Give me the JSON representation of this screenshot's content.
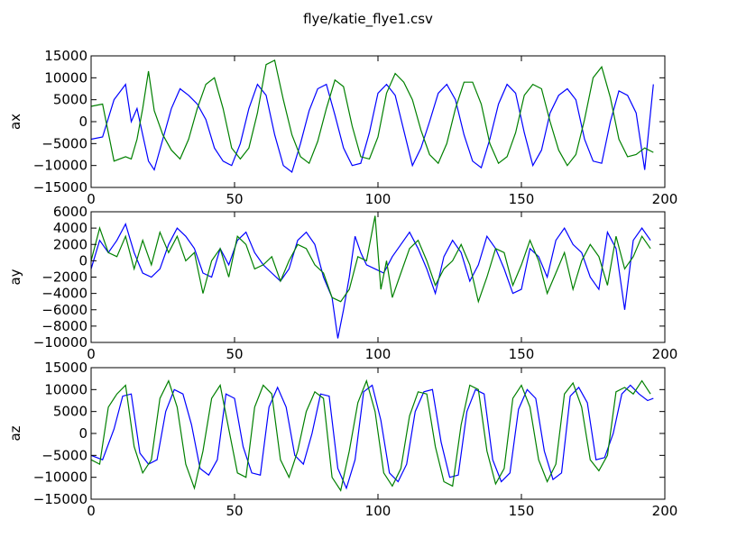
{
  "title": "flye/katie_flye1.csv",
  "colors": {
    "series_1": "#0000ff",
    "series_2": "#008000",
    "frame": "#000000"
  },
  "chart_data": [
    {
      "type": "line",
      "title": "",
      "xlabel": "",
      "ylabel": "ax",
      "xlim": [
        0,
        200
      ],
      "ylim": [
        -15000,
        15000
      ],
      "xticks": [
        0,
        50,
        100,
        150,
        200
      ],
      "yticks": [
        -15000,
        -10000,
        -5000,
        0,
        5000,
        10000,
        15000
      ],
      "grid": false,
      "series": [
        {
          "color": "#0000ff",
          "x": [
            0,
            4,
            8,
            12,
            14,
            16,
            18,
            20,
            22,
            25,
            28,
            31,
            34,
            37,
            40,
            43,
            46,
            49,
            52,
            55,
            58,
            61,
            64,
            67,
            70,
            73,
            76,
            79,
            82,
            85,
            88,
            91,
            94,
            97,
            100,
            103,
            106,
            109,
            112,
            115,
            118,
            121,
            124,
            127,
            130,
            133,
            136,
            139,
            142,
            145,
            148,
            151,
            154,
            157,
            160,
            163,
            166,
            169,
            172,
            175,
            178,
            181,
            184,
            187,
            190,
            193,
            196
          ],
          "y": [
            -4000,
            -3500,
            5000,
            8500,
            0,
            3000,
            -3000,
            -9000,
            -11000,
            -4000,
            3000,
            7500,
            6000,
            4000,
            500,
            -6000,
            -9000,
            -10000,
            -5000,
            3000,
            8500,
            6000,
            -3000,
            -10000,
            -11500,
            -5000,
            2500,
            7500,
            8500,
            1500,
            -6000,
            -10000,
            -9500,
            -2500,
            6500,
            8500,
            6000,
            -2000,
            -10000,
            -6000,
            0,
            6500,
            8500,
            5000,
            -3000,
            -9000,
            -10500,
            -4000,
            4000,
            8500,
            6500,
            -2500,
            -10000,
            -6500,
            2000,
            6000,
            7500,
            5000,
            -4000,
            -9000,
            -9500,
            0,
            7000,
            6000,
            2000,
            -11000,
            8500
          ]
        },
        {
          "color": "#008000",
          "x": [
            0,
            4,
            8,
            12,
            14,
            16,
            18,
            20,
            22,
            25,
            28,
            31,
            34,
            37,
            40,
            43,
            46,
            49,
            52,
            55,
            58,
            61,
            64,
            67,
            70,
            73,
            76,
            79,
            82,
            85,
            88,
            91,
            94,
            97,
            100,
            103,
            106,
            109,
            112,
            115,
            118,
            121,
            124,
            127,
            130,
            133,
            136,
            139,
            142,
            145,
            148,
            151,
            154,
            157,
            160,
            163,
            166,
            169,
            172,
            175,
            178,
            181,
            184,
            187,
            190,
            193,
            196
          ],
          "y": [
            3500,
            4000,
            -9000,
            -8000,
            -8500,
            -4000,
            3000,
            11500,
            2500,
            -3000,
            -6500,
            -8500,
            -4000,
            3000,
            8500,
            10000,
            3000,
            -6000,
            -8500,
            -6000,
            2000,
            13000,
            14000,
            5000,
            -3000,
            -8000,
            -9500,
            -4500,
            3000,
            9500,
            8000,
            -1000,
            -8000,
            -8500,
            -3500,
            6500,
            11000,
            9000,
            5000,
            -2000,
            -7500,
            -9500,
            -5000,
            3000,
            9000,
            9000,
            4000,
            -5000,
            -9500,
            -8000,
            -2500,
            6000,
            8500,
            7500,
            0,
            -6500,
            -10000,
            -7500,
            500,
            10000,
            12500,
            5500,
            -4000,
            -8000,
            -7500,
            -6000,
            -7000
          ]
        }
      ]
    },
    {
      "type": "line",
      "title": "",
      "xlabel": "",
      "ylabel": "ay",
      "xlim": [
        0,
        200
      ],
      "ylim": [
        -10000,
        6000
      ],
      "xticks": [
        0,
        50,
        100,
        150,
        200
      ],
      "yticks": [
        -10000,
        -8000,
        -6000,
        -4000,
        -2000,
        0,
        2000,
        4000,
        6000
      ],
      "grid": false,
      "series": [
        {
          "color": "#0000ff",
          "x": [
            0,
            3,
            6,
            9,
            12,
            15,
            18,
            21,
            24,
            27,
            30,
            33,
            36,
            39,
            42,
            45,
            48,
            51,
            54,
            57,
            60,
            63,
            66,
            69,
            72,
            75,
            78,
            81,
            84,
            86,
            88,
            90,
            92,
            94,
            96,
            99,
            102,
            105,
            108,
            111,
            114,
            117,
            120,
            123,
            126,
            129,
            132,
            135,
            138,
            141,
            144,
            147,
            150,
            153,
            156,
            159,
            162,
            165,
            168,
            171,
            174,
            177,
            180,
            183,
            186,
            189,
            192,
            195
          ],
          "y": [
            -1000,
            2500,
            1000,
            2500,
            4500,
            1000,
            -1500,
            -2000,
            -1000,
            2000,
            4000,
            3000,
            1500,
            -1500,
            -2000,
            1500,
            -500,
            2500,
            3500,
            1000,
            -500,
            -1500,
            -2500,
            -1000,
            2500,
            3500,
            2000,
            -2000,
            -4500,
            -9500,
            -6000,
            -2000,
            3000,
            1000,
            -500,
            -1000,
            -1500,
            500,
            2000,
            3500,
            1500,
            -1000,
            -4000,
            500,
            2500,
            1000,
            -2500,
            -500,
            3000,
            1500,
            -1000,
            -4000,
            -3500,
            1500,
            500,
            -2000,
            2500,
            4000,
            2000,
            1000,
            -2000,
            -3500,
            3500,
            1500,
            -6000,
            2500,
            4000,
            2500
          ]
        },
        {
          "color": "#008000",
          "x": [
            0,
            3,
            6,
            9,
            12,
            15,
            18,
            21,
            24,
            27,
            30,
            33,
            36,
            39,
            42,
            45,
            48,
            51,
            54,
            57,
            60,
            63,
            66,
            69,
            72,
            75,
            78,
            81,
            84,
            87,
            90,
            93,
            96,
            99,
            101,
            103,
            105,
            108,
            111,
            114,
            117,
            120,
            123,
            126,
            129,
            132,
            135,
            138,
            141,
            144,
            147,
            150,
            153,
            156,
            159,
            162,
            165,
            168,
            171,
            174,
            177,
            180,
            183,
            186,
            189,
            192,
            195
          ],
          "y": [
            0,
            4000,
            1000,
            500,
            3000,
            -1000,
            2500,
            -500,
            3500,
            1000,
            3000,
            0,
            1000,
            -4000,
            0,
            1500,
            -2000,
            3000,
            2000,
            -1000,
            -500,
            500,
            -2500,
            0,
            2000,
            1500,
            -500,
            -1500,
            -4500,
            -5000,
            -3500,
            500,
            0,
            5500,
            -3500,
            0,
            -4500,
            -1500,
            1500,
            2500,
            0,
            -3000,
            -1000,
            0,
            2000,
            -500,
            -5000,
            -2000,
            1500,
            1000,
            -3000,
            -500,
            2500,
            0,
            -4000,
            -1500,
            1000,
            -3500,
            0,
            2000,
            500,
            -3000,
            3000,
            -1000,
            500,
            3000,
            1500
          ]
        }
      ]
    },
    {
      "type": "line",
      "title": "",
      "xlabel": "",
      "ylabel": "az",
      "xlim": [
        0,
        200
      ],
      "ylim": [
        -15000,
        15000
      ],
      "xticks": [
        0,
        50,
        100,
        150,
        200
      ],
      "yticks": [
        -15000,
        -10000,
        -5000,
        0,
        5000,
        10000,
        15000
      ],
      "grid": false,
      "series": [
        {
          "color": "#0000ff",
          "x": [
            0,
            4,
            8,
            11,
            14,
            17,
            20,
            23,
            26,
            29,
            32,
            35,
            38,
            41,
            44,
            47,
            50,
            53,
            56,
            59,
            62,
            65,
            68,
            71,
            74,
            77,
            80,
            83,
            86,
            89,
            92,
            95,
            98,
            101,
            104,
            107,
            110,
            113,
            116,
            119,
            122,
            125,
            128,
            131,
            134,
            137,
            140,
            143,
            146,
            149,
            152,
            155,
            158,
            161,
            164,
            167,
            170,
            173,
            176,
            179,
            182,
            185,
            188,
            191,
            194,
            196
          ],
          "y": [
            -5000,
            -6000,
            1000,
            8500,
            9000,
            -4500,
            -7000,
            -6000,
            5000,
            10000,
            9000,
            2000,
            -8000,
            -9500,
            -6000,
            9000,
            8000,
            -3000,
            -9000,
            -9500,
            6000,
            10500,
            6000,
            -5000,
            -7000,
            0,
            9000,
            8500,
            -8000,
            -12500,
            -6000,
            9500,
            11000,
            3000,
            -9000,
            -11000,
            -7000,
            5000,
            9500,
            10000,
            -2000,
            -10000,
            -9500,
            5000,
            10000,
            9000,
            -6000,
            -11000,
            -9000,
            5500,
            10000,
            8000,
            -4000,
            -10500,
            -9000,
            8500,
            10500,
            7000,
            -6000,
            -5500,
            0,
            9000,
            11000,
            9000,
            7500,
            8000
          ]
        },
        {
          "color": "#008000",
          "x": [
            0,
            3,
            6,
            9,
            12,
            15,
            18,
            21,
            24,
            27,
            30,
            33,
            36,
            39,
            42,
            45,
            48,
            51,
            54,
            57,
            60,
            63,
            66,
            69,
            72,
            75,
            78,
            81,
            84,
            87,
            90,
            93,
            96,
            99,
            102,
            105,
            108,
            111,
            114,
            117,
            120,
            123,
            126,
            129,
            132,
            135,
            138,
            141,
            144,
            147,
            150,
            153,
            156,
            159,
            162,
            165,
            168,
            171,
            174,
            177,
            180,
            183,
            186,
            189,
            192,
            195
          ],
          "y": [
            -6000,
            -7000,
            6000,
            9000,
            11000,
            -3000,
            -9000,
            -6000,
            8000,
            12000,
            6000,
            -7000,
            -12500,
            -4000,
            8000,
            11000,
            1000,
            -9000,
            -10000,
            6000,
            11000,
            9000,
            -6000,
            -10000,
            -4000,
            5000,
            9500,
            8000,
            -10000,
            -13000,
            -4000,
            7000,
            12000,
            5000,
            -9000,
            -12000,
            -8000,
            4000,
            9500,
            9000,
            -3000,
            -11000,
            -12000,
            2000,
            11000,
            10000,
            -4000,
            -11500,
            -8000,
            8000,
            11000,
            6000,
            -6000,
            -11000,
            -7000,
            9000,
            11500,
            6000,
            -6000,
            -8500,
            -5000,
            9500,
            10500,
            9000,
            12000,
            9000
          ]
        }
      ]
    }
  ]
}
